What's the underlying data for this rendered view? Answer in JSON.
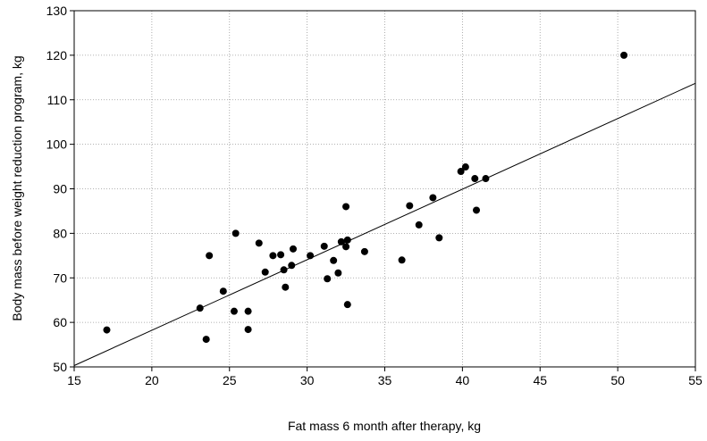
{
  "chart_data": {
    "type": "scatter",
    "xlabel": "Fat mass 6 month after therapy, kg",
    "ylabel": "Body mass before weight reduction program, kg",
    "x": [
      17.1,
      23.1,
      23.5,
      23.7,
      24.6,
      25.3,
      25.4,
      26.2,
      26.2,
      26.9,
      27.3,
      27.8,
      28.3,
      28.5,
      28.6,
      29.1,
      29.0,
      30.2,
      31.1,
      31.3,
      31.7,
      32.0,
      32.2,
      32.5,
      32.5,
      32.6,
      32.6,
      33.7,
      36.1,
      36.6,
      37.2,
      38.1,
      38.5,
      39.9,
      40.2,
      40.8,
      40.9,
      41.5,
      50.4
    ],
    "y": [
      58.3,
      63.2,
      56.2,
      75.0,
      67.0,
      62.5,
      80.0,
      62.5,
      58.4,
      77.8,
      71.3,
      75.0,
      75.2,
      71.8,
      67.9,
      76.5,
      72.8,
      75.0,
      77.1,
      69.8,
      73.9,
      71.1,
      78.1,
      86.0,
      77.0,
      78.5,
      64.0,
      75.9,
      74.0,
      86.2,
      81.9,
      88.0,
      79.0,
      93.9,
      94.9,
      92.3,
      85.2,
      92.3,
      120.0
    ],
    "color": "#000000",
    "fit_line": {
      "x": [
        15,
        55
      ],
      "y": [
        50.3,
        113.7
      ]
    },
    "xlim": [
      15,
      55
    ],
    "ylim": [
      50,
      130
    ],
    "xticks": [
      15,
      20,
      25,
      30,
      35,
      40,
      45,
      50,
      55
    ],
    "yticks": [
      50,
      60,
      70,
      80,
      90,
      100,
      110,
      120,
      130
    ],
    "grid": true
  }
}
